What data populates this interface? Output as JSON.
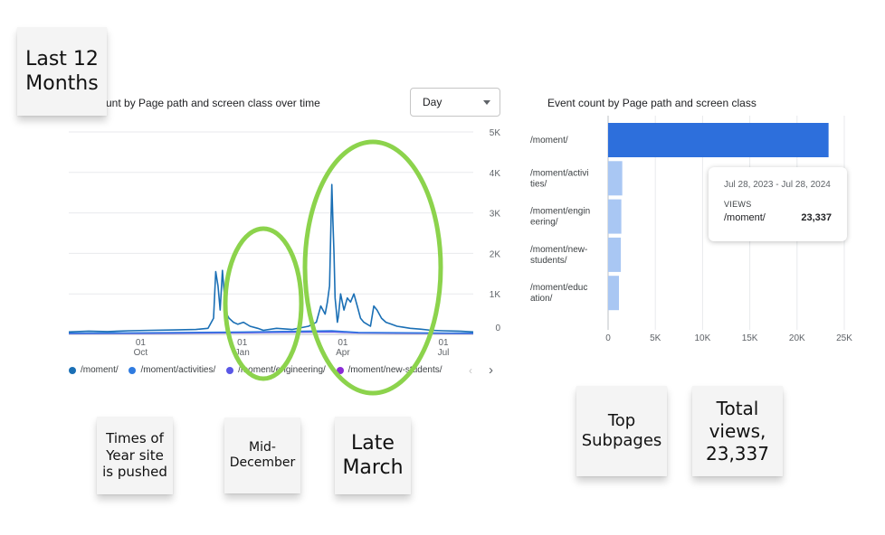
{
  "line_chart": {
    "title": "unt by Page path and screen class over time",
    "granularity_label": "Day",
    "legend": [
      "/moment/",
      "/moment/activities/",
      "/moment/engineering/",
      "/moment/new-students/"
    ],
    "colors": {
      "moment": "#1a6fb5",
      "activities": "#2f7be0",
      "engineering": "#5a57e6",
      "new_students": "#8a2bd6"
    }
  },
  "bar_chart": {
    "title": "Event count by Page path and screen class",
    "color_top": "#2d6fdc",
    "color_rest": "#a9c7f3"
  },
  "tooltip": {
    "date_range": "Jul 28, 2023 - Jul 28, 2024",
    "metric": "VIEWS",
    "path": "/moment/",
    "value": "23,337"
  },
  "notes": {
    "last_12_months": "Last 12 Months",
    "times_of_year": "Times of Year site is pushed",
    "mid_december": "Mid-December",
    "late_march": "Late March",
    "top_subpages": "Top Subpages",
    "total_views": "Total views, 23,337"
  },
  "chart_data": [
    {
      "type": "line",
      "y_ticks": [
        "0",
        "1K",
        "2K",
        "3K",
        "4K",
        "5K"
      ],
      "ylim": [
        0,
        5000
      ],
      "x_ticks": [
        {
          "day": "01",
          "month": "Oct",
          "date": "2023-10-01"
        },
        {
          "day": "01",
          "month": "Jan",
          "date": "2024-01-01"
        },
        {
          "day": "01",
          "month": "Apr",
          "date": "2024-04-01"
        },
        {
          "day": "01",
          "month": "Jul",
          "date": "2024-07-01"
        }
      ],
      "xlim": [
        "2023-07-28",
        "2024-07-28"
      ],
      "series": [
        {
          "name": "/moment/",
          "x": [
            "2023-07-28",
            "2023-08-15",
            "2023-09-01",
            "2023-09-20",
            "2023-10-10",
            "2023-11-01",
            "2023-11-20",
            "2023-12-01",
            "2023-12-06",
            "2023-12-08",
            "2023-12-10",
            "2023-12-12",
            "2023-12-14",
            "2023-12-16",
            "2023-12-18",
            "2023-12-20",
            "2023-12-24",
            "2023-12-28",
            "2024-01-02",
            "2024-01-08",
            "2024-01-15",
            "2024-01-20",
            "2024-02-01",
            "2024-02-15",
            "2024-03-01",
            "2024-03-08",
            "2024-03-12",
            "2024-03-16",
            "2024-03-18",
            "2024-03-20",
            "2024-03-22",
            "2024-03-23",
            "2024-03-24",
            "2024-03-25",
            "2024-03-26",
            "2024-03-27",
            "2024-03-28",
            "2024-03-30",
            "2024-04-02",
            "2024-04-05",
            "2024-04-08",
            "2024-04-11",
            "2024-04-14",
            "2024-04-17",
            "2024-04-20",
            "2024-04-23",
            "2024-04-26",
            "2024-04-29",
            "2024-05-02",
            "2024-05-06",
            "2024-05-10",
            "2024-05-15",
            "2024-05-20",
            "2024-05-25",
            "2024-06-01",
            "2024-06-10",
            "2024-06-20",
            "2024-07-01",
            "2024-07-15",
            "2024-07-28"
          ],
          "values": [
            60,
            80,
            70,
            90,
            100,
            110,
            120,
            150,
            400,
            1550,
            1200,
            600,
            1580,
            900,
            500,
            400,
            300,
            250,
            300,
            200,
            150,
            100,
            150,
            120,
            200,
            300,
            700,
            500,
            800,
            1200,
            3700,
            2800,
            2000,
            900,
            600,
            300,
            450,
            1000,
            600,
            900,
            800,
            1000,
            700,
            400,
            300,
            250,
            200,
            700,
            600,
            400,
            300,
            250,
            200,
            180,
            150,
            130,
            100,
            90,
            80,
            60
          ]
        },
        {
          "name": "/moment/activities/",
          "x": [
            "2023-07-28",
            "2023-10-01",
            "2024-01-01",
            "2024-03-22",
            "2024-04-15",
            "2024-07-28"
          ],
          "values": [
            30,
            40,
            60,
            90,
            50,
            30
          ]
        },
        {
          "name": "/moment/engineering/",
          "x": [
            "2023-07-28",
            "2023-10-01",
            "2024-01-01",
            "2024-03-22",
            "2024-04-15",
            "2024-07-28"
          ],
          "values": [
            20,
            25,
            40,
            60,
            35,
            20
          ]
        },
        {
          "name": "/moment/new-students/",
          "x": [
            "2023-07-28",
            "2023-10-01",
            "2024-01-01",
            "2024-03-22",
            "2024-04-15",
            "2024-07-28"
          ],
          "values": [
            25,
            30,
            45,
            70,
            40,
            25
          ]
        }
      ]
    },
    {
      "type": "bar",
      "orientation": "horizontal",
      "categories": [
        "/moment/",
        "/moment/activi ties/",
        "/moment/engin eering/",
        "/moment/new- students/",
        "/moment/educ ation/"
      ],
      "values": [
        23337,
        1500,
        1400,
        1350,
        1150
      ],
      "x_ticks": [
        "0",
        "5K",
        "10K",
        "15K",
        "20K",
        "25K"
      ],
      "xlim": [
        0,
        25000
      ]
    }
  ]
}
